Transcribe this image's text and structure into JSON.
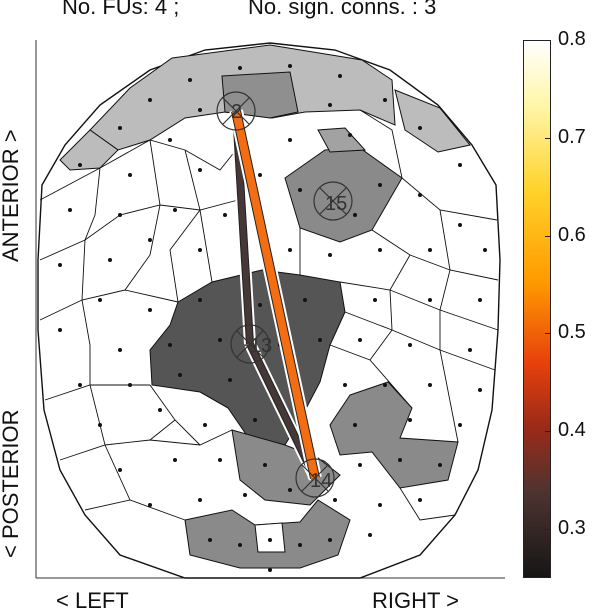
{
  "header": {
    "fus_text": "No. FUs: 4 ;",
    "conns_text": "No. sign. conns. : 3"
  },
  "axes": {
    "anterior": "ANTERIOR >",
    "posterior": "< POSTERIOR",
    "left": "< LEFT",
    "right": "RIGHT >"
  },
  "nodes": [
    {
      "label": "2"
    },
    {
      "label": "15"
    },
    {
      "label": "13"
    },
    {
      "label": "14"
    }
  ],
  "colorbar": {
    "min": 0.25,
    "max": 0.8,
    "ticks": [
      "0.8",
      "0.7",
      "0.6",
      "0.5",
      "0.4",
      "0.3"
    ],
    "tick_values": [
      0.8,
      0.7,
      0.6,
      0.5,
      0.4,
      0.3
    ]
  },
  "connections": [
    {
      "from": "2",
      "to": "14",
      "strength": 0.52
    },
    {
      "from": "2",
      "to": "13",
      "strength": 0.28
    },
    {
      "from": "13",
      "to": "14",
      "strength": 0.28
    }
  ],
  "colors": {
    "light_region": "#bcbcbc",
    "mid_region": "#8a8a8a",
    "dark_region": "#555555",
    "strong_connection": "#f36e12",
    "weak_connection": "#463836"
  }
}
